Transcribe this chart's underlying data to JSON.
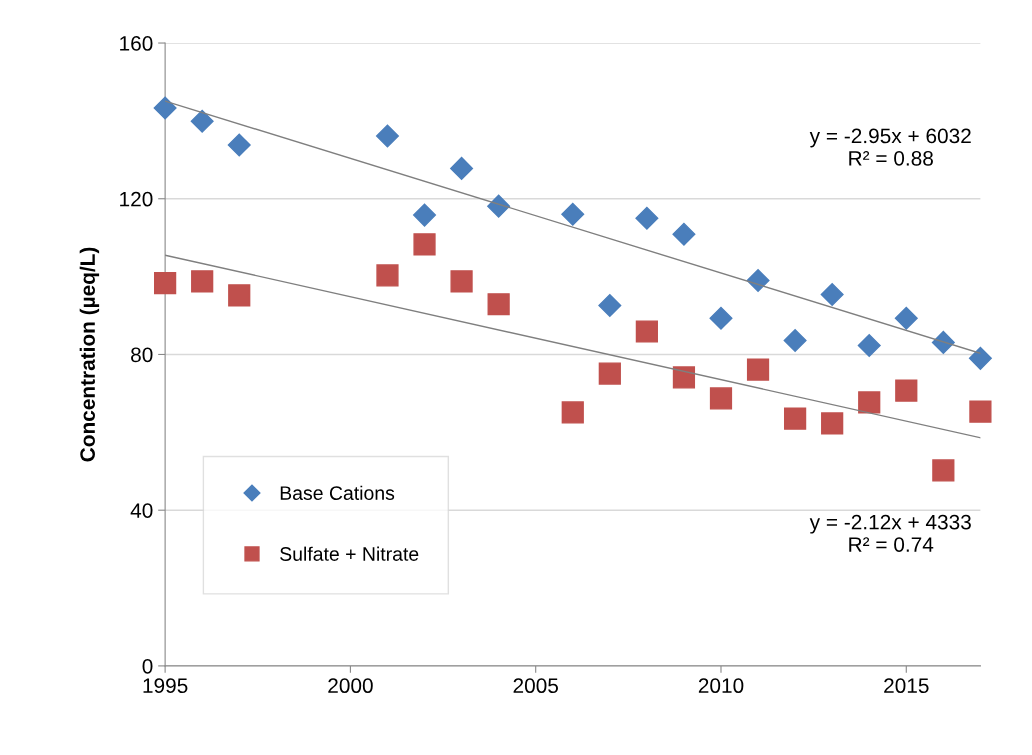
{
  "chart_data": {
    "type": "scatter",
    "ylabel": "Concentration (µeq/L)",
    "xlim": [
      1995,
      2017
    ],
    "xticks": [
      1995,
      2000,
      2005,
      2010,
      2015
    ],
    "ylim": [
      0,
      160
    ],
    "yticks": [
      0,
      40,
      80,
      120,
      160
    ],
    "grid": "y",
    "legend": "bottom left",
    "series": [
      {
        "name": "Base Cations",
        "color": "#4a7ebb",
        "marker": "diamond",
        "x": [
          1995,
          1996,
          1997,
          2001,
          2002,
          2003,
          2004,
          2006,
          2007,
          2008,
          2009,
          2010,
          2011,
          2012,
          2013,
          2014,
          2015,
          2016,
          2017
        ],
        "values": [
          143.3,
          139.9,
          133.8,
          136.1,
          115.8,
          127.8,
          118.1,
          116.0,
          92.6,
          115.0,
          110.9,
          89.3,
          99.0,
          83.6,
          95.4,
          82.3,
          89.3,
          83.1,
          79.0
        ]
      },
      {
        "name": "Sulfate + Nitrate",
        "color": "#c0504d",
        "marker": "square",
        "x": [
          1995,
          1996,
          1997,
          2001,
          2002,
          2003,
          2004,
          2006,
          2007,
          2008,
          2009,
          2010,
          2011,
          2012,
          2013,
          2014,
          2015,
          2016,
          2017
        ],
        "values": [
          98.3,
          98.8,
          95.2,
          100.3,
          108.3,
          98.8,
          92.9,
          65.1,
          75.1,
          85.9,
          74.1,
          68.7,
          76.1,
          63.5,
          62.3,
          67.7,
          70.7,
          50.2,
          65.3
        ]
      },
      {
        "type": "line",
        "color": "#7f7f7f",
        "x": [
          1995,
          2017
        ],
        "values": [
          145.1,
          80.3
        ]
      },
      {
        "type": "line",
        "color": "#7f7f7f",
        "x": [
          1995,
          2017
        ],
        "values": [
          105.5,
          58.6
        ]
      }
    ],
    "annotations": [
      "y = -2.95x + 6032\nR² = 0.88",
      "y = -2.12x + 4333\nR² = 0.74"
    ]
  }
}
